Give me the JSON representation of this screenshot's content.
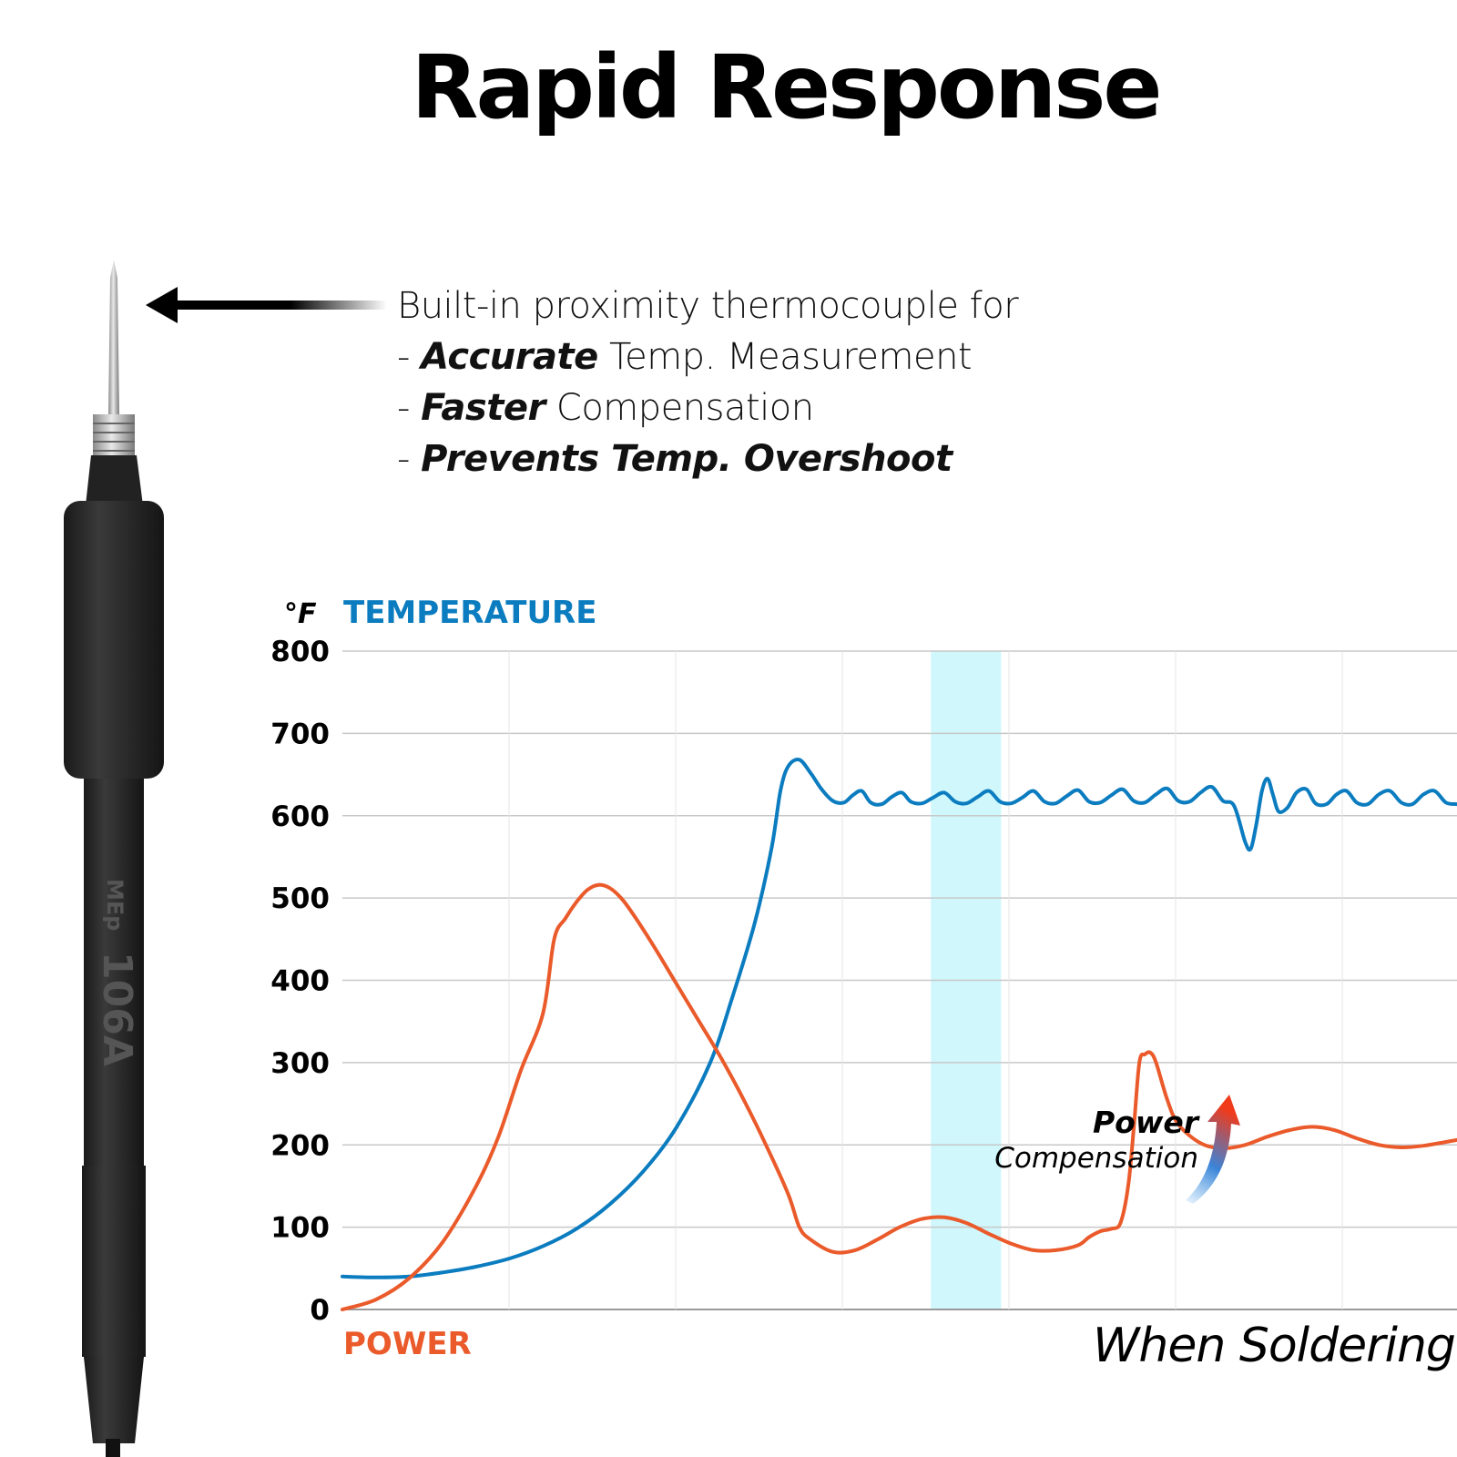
{
  "title": "Rapid Response",
  "description": {
    "intro": "Built-in proximity  thermocouple for",
    "bullets": [
      {
        "dash": "- ",
        "bold": "Accurate",
        "rest": " Temp. Measurement"
      },
      {
        "dash": "- ",
        "bold": "Faster",
        "rest": " Compensation"
      },
      {
        "dash": "- ",
        "bold": "Prevents Temp. Overshoot",
        "rest": ""
      }
    ]
  },
  "iron": {
    "brand_text": "MEp",
    "model_text": "106A"
  },
  "annotations": {
    "power_compensation_bold": "Power",
    "power_compensation_text": "Compensation",
    "when_soldering": "When Soldering"
  },
  "colors": {
    "temperature": "#0b7cbf",
    "power": "#ea5a2a",
    "highlight": "#cff7fc",
    "grid": "#c8c8c8"
  },
  "chart_data": {
    "type": "line",
    "unit_label": "°F",
    "title": "TEMPERATURE",
    "xlabel": "POWER",
    "ylim": [
      0,
      800
    ],
    "yticks": [
      0,
      100,
      200,
      300,
      400,
      500,
      600,
      700,
      800
    ],
    "xlim": [
      0,
      100
    ],
    "highlight_range": [
      52.8,
      59.1
    ],
    "series": [
      {
        "name": "TEMPERATURE",
        "color": "#0b7cbf",
        "points": [
          [
            0,
            40
          ],
          [
            3,
            39
          ],
          [
            6,
            40
          ],
          [
            9,
            45
          ],
          [
            12,
            52
          ],
          [
            15,
            62
          ],
          [
            18,
            77
          ],
          [
            21,
            98
          ],
          [
            24,
            128
          ],
          [
            27,
            168
          ],
          [
            30,
            222
          ],
          [
            33,
            300
          ],
          [
            35,
            380
          ],
          [
            37,
            470
          ],
          [
            38.5,
            560
          ],
          [
            39.3,
            630
          ],
          [
            40,
            660
          ],
          [
            41,
            668
          ],
          [
            42,
            652
          ],
          [
            43,
            632
          ],
          [
            44,
            618
          ],
          [
            45,
            616
          ],
          [
            45.8,
            625
          ],
          [
            46.6,
            630
          ],
          [
            47.4,
            616
          ],
          [
            48.4,
            614
          ],
          [
            49.3,
            623
          ],
          [
            50.2,
            628
          ],
          [
            51,
            617
          ],
          [
            52,
            615
          ],
          [
            53,
            622
          ],
          [
            54,
            628
          ],
          [
            55,
            617
          ],
          [
            56,
            615
          ],
          [
            57,
            623
          ],
          [
            58,
            630
          ],
          [
            59,
            617
          ],
          [
            60,
            615
          ],
          [
            61,
            622
          ],
          [
            62,
            630
          ],
          [
            63,
            617
          ],
          [
            64,
            615
          ],
          [
            65,
            624
          ],
          [
            66,
            631
          ],
          [
            67,
            617
          ],
          [
            68,
            616
          ],
          [
            69,
            625
          ],
          [
            70,
            632
          ],
          [
            71,
            618
          ],
          [
            72,
            616
          ],
          [
            73,
            626
          ],
          [
            74,
            633
          ],
          [
            75,
            618
          ],
          [
            76,
            617
          ],
          [
            77,
            628
          ],
          [
            78,
            635
          ],
          [
            79,
            618
          ],
          [
            80,
            612
          ],
          [
            81,
            568
          ],
          [
            81.5,
            560
          ],
          [
            82,
            590
          ],
          [
            82.5,
            630
          ],
          [
            83,
            645
          ],
          [
            83.5,
            625
          ],
          [
            84,
            605
          ],
          [
            84.8,
            610
          ],
          [
            85.6,
            628
          ],
          [
            86.5,
            632
          ],
          [
            87.3,
            615
          ],
          [
            88.3,
            614
          ],
          [
            89.2,
            626
          ],
          [
            90.1,
            630
          ],
          [
            91,
            616
          ],
          [
            92,
            614
          ],
          [
            93,
            626
          ],
          [
            94,
            630
          ],
          [
            95,
            616
          ],
          [
            96,
            614
          ],
          [
            97,
            626
          ],
          [
            98,
            630
          ],
          [
            99,
            616
          ],
          [
            100,
            614
          ]
        ]
      },
      {
        "name": "POWER",
        "color": "#ea5a2a",
        "points": [
          [
            0,
            0
          ],
          [
            3,
            12
          ],
          [
            6,
            38
          ],
          [
            9,
            82
          ],
          [
            12,
            150
          ],
          [
            14,
            210
          ],
          [
            16,
            290
          ],
          [
            18,
            360
          ],
          [
            19,
            450
          ],
          [
            20,
            475
          ],
          [
            21,
            495
          ],
          [
            22,
            510
          ],
          [
            23,
            516
          ],
          [
            24,
            512
          ],
          [
            25,
            500
          ],
          [
            26,
            482
          ],
          [
            28,
            440
          ],
          [
            30,
            395
          ],
          [
            32,
            350
          ],
          [
            34,
            305
          ],
          [
            36,
            255
          ],
          [
            38,
            200
          ],
          [
            40,
            140
          ],
          [
            41,
            100
          ],
          [
            42,
            85
          ],
          [
            44,
            70
          ],
          [
            46,
            72
          ],
          [
            48,
            85
          ],
          [
            50,
            100
          ],
          [
            52,
            110
          ],
          [
            54,
            112
          ],
          [
            56,
            105
          ],
          [
            58,
            92
          ],
          [
            60,
            80
          ],
          [
            62,
            72
          ],
          [
            64,
            72
          ],
          [
            66,
            78
          ],
          [
            67,
            88
          ],
          [
            68,
            95
          ],
          [
            69,
            98
          ],
          [
            69.8,
            105
          ],
          [
            70.5,
            150
          ],
          [
            71,
            220
          ],
          [
            71.5,
            300
          ],
          [
            72,
            310
          ],
          [
            72.5,
            312
          ],
          [
            73,
            300
          ],
          [
            74,
            255
          ],
          [
            75,
            225
          ],
          [
            77,
            202
          ],
          [
            79,
            196
          ],
          [
            81,
            200
          ],
          [
            83,
            210
          ],
          [
            85,
            218
          ],
          [
            87,
            222
          ],
          [
            89,
            218
          ],
          [
            91,
            208
          ],
          [
            93,
            200
          ],
          [
            95,
            197
          ],
          [
            97,
            199
          ],
          [
            100,
            206
          ]
        ]
      }
    ]
  }
}
